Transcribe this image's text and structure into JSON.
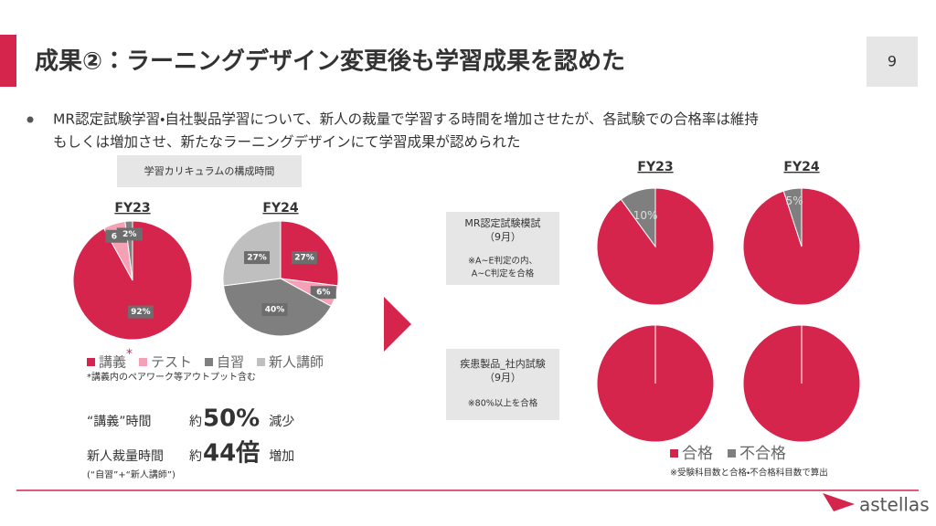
{
  "header": {
    "title": "成果②：ラーニングデザイン変更後も学習成果を認めた",
    "page": "9"
  },
  "bullet": [
    "MR認定試験学習・自社製品学習について、新人の裁量で学習する時間を増加させたが、各試験での合格率は維持",
    "もしくは増加させ、新たなラーニングデザインにて学習成果が認められた"
  ],
  "curriculum": {
    "heading": "学習カリキュラムの構成時間",
    "legend_marker": "*",
    "note": "*講義内のペアワーク等アウトプット含む"
  },
  "summary": {
    "rows": [
      {
        "label": "“講義”時間",
        "prefix": "約",
        "figure": "50%",
        "suffix": "減少"
      },
      {
        "label": "新人裁量時間",
        "prefix": "約",
        "figure": "44倍",
        "suffix": "増加",
        "sub": "(“自習”+“新人講師”)"
      }
    ]
  },
  "pass_rate": {
    "columns": [
      "FY23",
      "FY24"
    ],
    "rows": [
      {
        "lines": [
          "MR認定試験模試",
          "（9月）",
          "※A~E判定の内、",
          "A~C判定を合格"
        ]
      },
      {
        "lines": [
          "疾患製品_社内試験",
          "（9月）",
          "※80%以上を合格"
        ]
      }
    ],
    "note": "※受験科目数と合格・不合格科目数で算出"
  },
  "logo": "astellas",
  "chart_data": [
    {
      "type": "pie",
      "title": "FY23",
      "categories": [
        "講義",
        "テスト",
        "自習"
      ],
      "values": [
        92,
        6,
        2
      ],
      "value_labels": [
        "92%",
        "6%",
        "2%"
      ],
      "colors": [
        "#d6254d",
        "#f4a0b5",
        "#7f7f7f"
      ]
    },
    {
      "type": "pie",
      "title": "FY24",
      "categories": [
        "講義",
        "テスト",
        "自習",
        "新人講師"
      ],
      "values": [
        27,
        6,
        40,
        27
      ],
      "value_labels": [
        "27%",
        "6%",
        "40%",
        "27%"
      ],
      "colors": [
        "#d6254d",
        "#f4a0b5",
        "#7f7f7f",
        "#bfbfbf"
      ]
    },
    {
      "type": "pie",
      "categories": [
        "合格",
        "不合格"
      ],
      "values": [
        90,
        10
      ],
      "value_labels": [
        null,
        "10%"
      ],
      "colors": [
        "#d6254d",
        "#7f7f7f"
      ]
    },
    {
      "type": "pie",
      "categories": [
        "合格",
        "不合格"
      ],
      "values": [
        95,
        5
      ],
      "value_labels": [
        null,
        "5%"
      ],
      "colors": [
        "#d6254d",
        "#7f7f7f"
      ]
    },
    {
      "type": "pie",
      "categories": [
        "合格",
        "不合格"
      ],
      "values": [
        100,
        0
      ],
      "value_labels": [
        null,
        null
      ],
      "colors": [
        "#d6254d",
        "#7f7f7f"
      ]
    },
    {
      "type": "pie",
      "categories": [
        "合格",
        "不合格"
      ],
      "values": [
        100,
        0
      ],
      "value_labels": [
        null,
        null
      ],
      "colors": [
        "#d6254d",
        "#7f7f7f"
      ]
    }
  ]
}
